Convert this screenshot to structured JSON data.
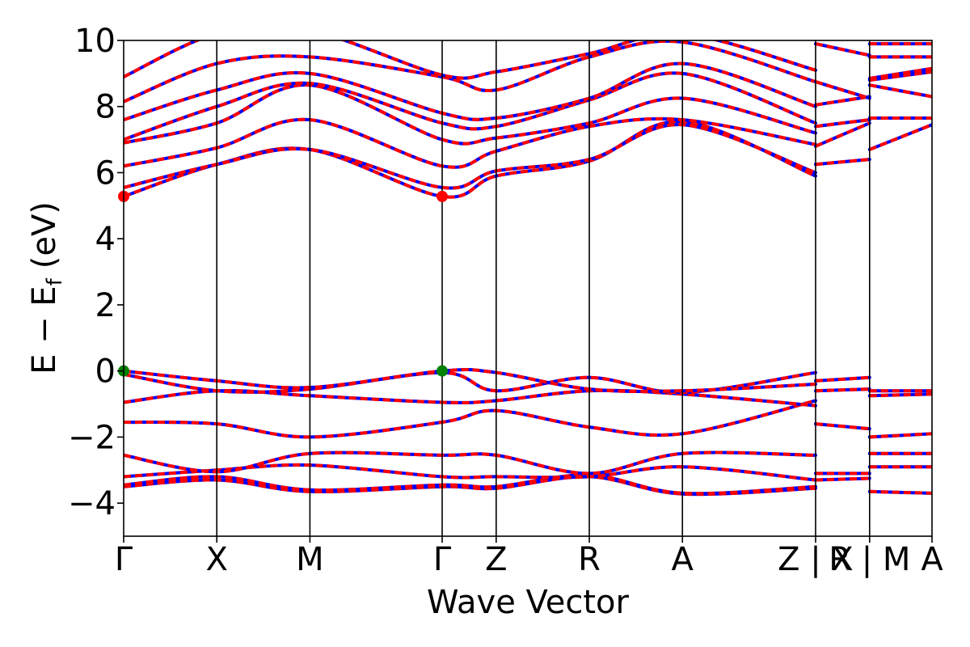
{
  "chart_data": {
    "type": "line",
    "title": "",
    "xlabel": "Wave Vector",
    "ylabel": "E − E",
    "ylabel_sub": "f",
    "ylabel_unit": "(eV)",
    "ylim": [
      -5,
      10
    ],
    "yticks": [
      -4,
      -2,
      0,
      2,
      4,
      6,
      8,
      10
    ],
    "ytick_labels": [
      "−4",
      "−2",
      "0",
      "2",
      "4",
      "6",
      "8",
      "10"
    ],
    "xlim": [
      0,
      8.68
    ],
    "kpoints": [
      {
        "x": 0,
        "label": "Γ"
      },
      {
        "x": 1.0,
        "label": "X"
      },
      {
        "x": 2.0,
        "label": "M"
      },
      {
        "x": 3.42,
        "label": "Γ"
      },
      {
        "x": 4.0,
        "label": "Z"
      },
      {
        "x": 5.0,
        "label": "R"
      },
      {
        "x": 6.0,
        "label": "A"
      },
      {
        "x": 7.43,
        "label": "Z | X"
      },
      {
        "x": 8.01,
        "label": "R | M"
      },
      {
        "x": 8.68,
        "label": "A"
      }
    ],
    "vlines": [
      1.0,
      2.0,
      3.42,
      4.0,
      5.0,
      6.0,
      7.43,
      8.01
    ],
    "colors": {
      "band": "#ff0000",
      "band_dash": "#0000ff",
      "cbm": "#ff0000",
      "vbm": "#008000"
    },
    "extrema": [
      {
        "kind": "VBM",
        "x": 0,
        "y": 0
      },
      {
        "kind": "VBM",
        "x": 3.42,
        "y": 0
      },
      {
        "kind": "CBM",
        "x": 0,
        "y": 5.28
      },
      {
        "kind": "CBM",
        "x": 3.42,
        "y": 5.28
      }
    ],
    "bands": [
      {
        "name": "",
        "points": [
          [
            0,
            -3.5
          ],
          [
            1,
            -3.3
          ],
          [
            2,
            -3.65
          ],
          [
            3.42,
            -3.5
          ],
          [
            4,
            -3.55
          ],
          [
            5,
            -3.2
          ],
          [
            6,
            -3.72
          ],
          [
            7.43,
            -3.55
          ]
        ]
      },
      {
        "name": "",
        "points": [
          [
            0,
            -3.45
          ],
          [
            1,
            -3.2
          ],
          [
            2,
            -3.6
          ],
          [
            3.42,
            -3.45
          ],
          [
            4,
            -3.5
          ],
          [
            5,
            -3.15
          ],
          [
            6,
            -3.7
          ],
          [
            7.43,
            -3.5
          ]
        ]
      },
      {
        "name": "",
        "points": [
          [
            0,
            -3.2
          ],
          [
            1,
            -3.0
          ],
          [
            2,
            -2.85
          ],
          [
            3.42,
            -3.2
          ],
          [
            4,
            -3.2
          ],
          [
            5,
            -3.2
          ],
          [
            6,
            -2.9
          ],
          [
            7.43,
            -3.3
          ]
        ]
      },
      {
        "name": "",
        "points": [
          [
            0,
            -2.55
          ],
          [
            1,
            -3.05
          ],
          [
            2,
            -2.5
          ],
          [
            3.42,
            -2.55
          ],
          [
            4,
            -2.55
          ],
          [
            5,
            -3.1
          ],
          [
            6,
            -2.5
          ],
          [
            7.43,
            -2.55
          ]
        ]
      },
      {
        "name": "",
        "points": [
          [
            0,
            -1.55
          ],
          [
            1,
            -1.6
          ],
          [
            2,
            -2.0
          ],
          [
            3.42,
            -1.55
          ],
          [
            4,
            -1.2
          ],
          [
            5,
            -1.7
          ],
          [
            6,
            -1.9
          ],
          [
            7.43,
            -0.9
          ]
        ]
      },
      {
        "name": "",
        "points": [
          [
            0,
            -0.95
          ],
          [
            1,
            -0.6
          ],
          [
            2,
            -0.75
          ],
          [
            3.42,
            -0.95
          ],
          [
            4,
            -0.9
          ],
          [
            5,
            -0.6
          ],
          [
            6,
            -0.7
          ],
          [
            7.43,
            -1.05
          ]
        ]
      },
      {
        "name": "",
        "points": [
          [
            0,
            -0.1
          ],
          [
            1,
            -0.6
          ],
          [
            2,
            -0.55
          ],
          [
            3.42,
            -0.05
          ],
          [
            4,
            -0.6
          ],
          [
            5,
            -0.2
          ],
          [
            6,
            -0.65
          ],
          [
            7.43,
            -0.05
          ]
        ]
      },
      {
        "name": "",
        "points": [
          [
            0,
            0
          ],
          [
            1,
            -0.3
          ],
          [
            2,
            -0.5
          ],
          [
            3.42,
            0
          ],
          [
            4,
            -0.05
          ],
          [
            5,
            -0.55
          ],
          [
            6,
            -0.6
          ],
          [
            7.43,
            -0.4
          ]
        ]
      },
      {
        "name": "",
        "points": [
          [
            0,
            5.28
          ],
          [
            1,
            6.25
          ],
          [
            2,
            6.7
          ],
          [
            3.42,
            5.28
          ],
          [
            4,
            5.9
          ],
          [
            5,
            6.35
          ],
          [
            6,
            7.55
          ],
          [
            7.43,
            5.9
          ]
        ]
      },
      {
        "name": "",
        "points": [
          [
            0,
            5.55
          ],
          [
            1,
            6.25
          ],
          [
            2,
            6.7
          ],
          [
            3.42,
            5.55
          ],
          [
            4,
            6.05
          ],
          [
            5,
            6.4
          ],
          [
            6,
            7.45
          ],
          [
            7.43,
            6.0
          ]
        ]
      },
      {
        "name": "",
        "points": [
          [
            0,
            6.2
          ],
          [
            1,
            6.75
          ],
          [
            2,
            7.6
          ],
          [
            3.42,
            6.2
          ],
          [
            4,
            6.65
          ],
          [
            5,
            7.4
          ],
          [
            6,
            7.6
          ],
          [
            7.43,
            6.85
          ]
        ]
      },
      {
        "name": "",
        "points": [
          [
            0,
            6.9
          ],
          [
            1,
            7.5
          ],
          [
            2,
            8.65
          ],
          [
            3.42,
            7.0
          ],
          [
            4,
            7.05
          ],
          [
            5,
            7.5
          ],
          [
            6,
            8.25
          ],
          [
            7.43,
            7.2
          ]
        ]
      },
      {
        "name": "",
        "points": [
          [
            0,
            7.0
          ],
          [
            1,
            8.0
          ],
          [
            2,
            8.7
          ],
          [
            3.42,
            7.5
          ],
          [
            4,
            7.4
          ],
          [
            5,
            8.2
          ],
          [
            6,
            9.0
          ],
          [
            7.43,
            7.5
          ]
        ]
      },
      {
        "name": "",
        "points": [
          [
            0,
            7.6
          ],
          [
            1,
            8.5
          ],
          [
            2,
            9.0
          ],
          [
            3.42,
            7.8
          ],
          [
            4,
            7.65
          ],
          [
            5,
            8.25
          ],
          [
            6,
            9.3
          ],
          [
            7.43,
            8.0
          ]
        ]
      },
      {
        "name": "",
        "points": [
          [
            0,
            8.15
          ],
          [
            1,
            9.3
          ],
          [
            2,
            9.5
          ],
          [
            3.42,
            8.9
          ],
          [
            4,
            8.5
          ],
          [
            5,
            9.5
          ],
          [
            6,
            9.95
          ],
          [
            7.43,
            8.75
          ]
        ]
      },
      {
        "name": "",
        "points": [
          [
            0,
            8.9
          ],
          [
            1,
            10.2
          ],
          [
            2,
            10.3
          ],
          [
            3.42,
            8.95
          ],
          [
            4,
            9.05
          ],
          [
            5,
            9.6
          ],
          [
            6,
            10.2
          ],
          [
            7.43,
            9.1
          ]
        ]
      },
      {
        "name": "",
        "points": [
          [
            7.43,
            -3.1
          ],
          [
            8.01,
            -3.1
          ]
        ]
      },
      {
        "name": "",
        "points": [
          [
            7.43,
            -3.3
          ],
          [
            8.01,
            -3.25
          ]
        ]
      },
      {
        "name": "",
        "points": [
          [
            7.43,
            -1.6
          ],
          [
            8.01,
            -1.75
          ]
        ]
      },
      {
        "name": "",
        "points": [
          [
            7.43,
            -0.6
          ],
          [
            8.01,
            -0.55
          ]
        ]
      },
      {
        "name": "",
        "points": [
          [
            7.43,
            -0.3
          ],
          [
            8.01,
            -0.2
          ]
        ]
      },
      {
        "name": "",
        "points": [
          [
            7.43,
            6.25
          ],
          [
            8.01,
            6.4
          ]
        ]
      },
      {
        "name": "",
        "points": [
          [
            7.43,
            6.8
          ],
          [
            8.01,
            7.5
          ]
        ]
      },
      {
        "name": "",
        "points": [
          [
            7.43,
            7.4
          ],
          [
            8.01,
            7.6
          ]
        ]
      },
      {
        "name": "",
        "points": [
          [
            7.43,
            8.05
          ],
          [
            8.01,
            8.3
          ]
        ]
      },
      {
        "name": "",
        "points": [
          [
            7.43,
            8.75
          ],
          [
            8.01,
            8.25
          ]
        ]
      },
      {
        "name": "",
        "points": [
          [
            7.43,
            9.9
          ],
          [
            8.01,
            9.55
          ]
        ]
      },
      {
        "name": "",
        "points": [
          [
            8.01,
            -3.65
          ],
          [
            8.68,
            -3.7
          ]
        ]
      },
      {
        "name": "",
        "points": [
          [
            8.01,
            -2.9
          ],
          [
            8.68,
            -2.9
          ]
        ]
      },
      {
        "name": "",
        "points": [
          [
            8.01,
            -2.5
          ],
          [
            8.68,
            -2.5
          ]
        ]
      },
      {
        "name": "",
        "points": [
          [
            8.01,
            -2.0
          ],
          [
            8.68,
            -1.9
          ]
        ]
      },
      {
        "name": "",
        "points": [
          [
            8.01,
            -0.75
          ],
          [
            8.68,
            -0.7
          ]
        ]
      },
      {
        "name": "",
        "points": [
          [
            8.01,
            -0.6
          ],
          [
            8.68,
            -0.6
          ]
        ]
      },
      {
        "name": "",
        "points": [
          [
            8.01,
            6.7
          ],
          [
            8.68,
            7.45
          ]
        ]
      },
      {
        "name": "",
        "points": [
          [
            8.01,
            7.65
          ],
          [
            8.68,
            7.65
          ]
        ]
      },
      {
        "name": "",
        "points": [
          [
            8.01,
            8.65
          ],
          [
            8.68,
            8.3
          ]
        ]
      },
      {
        "name": "",
        "points": [
          [
            8.01,
            8.8
          ],
          [
            8.68,
            9.05
          ]
        ]
      },
      {
        "name": "",
        "points": [
          [
            8.01,
            8.85
          ],
          [
            8.68,
            9.15
          ]
        ]
      },
      {
        "name": "",
        "points": [
          [
            8.01,
            9.5
          ],
          [
            8.68,
            9.5
          ]
        ]
      },
      {
        "name": "",
        "points": [
          [
            8.01,
            9.9
          ],
          [
            8.68,
            9.9
          ]
        ]
      }
    ]
  }
}
